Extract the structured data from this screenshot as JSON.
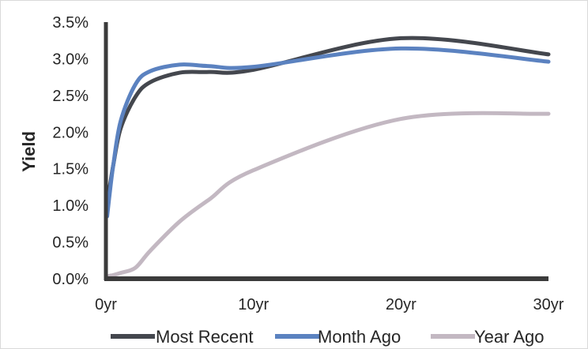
{
  "chart_data": {
    "type": "line",
    "title": "",
    "xlabel": "",
    "ylabel": "Yield",
    "xlim": [
      0,
      30
    ],
    "ylim": [
      0,
      0.035
    ],
    "x_ticks": [
      {
        "value": 0,
        "label": "0yr"
      },
      {
        "value": 10,
        "label": "10yr"
      },
      {
        "value": 20,
        "label": "20yr"
      },
      {
        "value": 30,
        "label": "30yr"
      }
    ],
    "y_ticks": [
      {
        "value": 0.0,
        "label": "0.0%"
      },
      {
        "value": 0.005,
        "label": "0.5%"
      },
      {
        "value": 0.01,
        "label": "1.0%"
      },
      {
        "value": 0.015,
        "label": "1.5%"
      },
      {
        "value": 0.02,
        "label": "2.0%"
      },
      {
        "value": 0.025,
        "label": "2.5%"
      },
      {
        "value": 0.03,
        "label": "3.0%"
      },
      {
        "value": 0.035,
        "label": "3.5%"
      }
    ],
    "grid": false,
    "legend_position": "bottom",
    "series": [
      {
        "name": "Most Recent",
        "color": "#44474e",
        "x": [
          0.083,
          0.25,
          0.5,
          1,
          2,
          3,
          5,
          7,
          10,
          20,
          30
        ],
        "y": [
          0.0118,
          0.0125,
          0.0155,
          0.0205,
          0.0248,
          0.0268,
          0.0281,
          0.0282,
          0.0285,
          0.0328,
          0.0306
        ]
      },
      {
        "name": "Month Ago",
        "color": "#5b82c0",
        "x": [
          0.083,
          0.25,
          0.5,
          1,
          2,
          3,
          5,
          7,
          10,
          20,
          30
        ],
        "y": [
          0.0085,
          0.0115,
          0.0155,
          0.0215,
          0.0265,
          0.0283,
          0.0292,
          0.029,
          0.0289,
          0.0314,
          0.0296
        ]
      },
      {
        "name": "Year Ago",
        "color": "#c3b8c2",
        "x": [
          0.083,
          0.25,
          0.5,
          1,
          2,
          3,
          5,
          7,
          10,
          20,
          30
        ],
        "y": [
          0.0003,
          0.0004,
          0.0005,
          0.0008,
          0.0015,
          0.0038,
          0.0078,
          0.0108,
          0.0148,
          0.0218,
          0.0225
        ]
      }
    ]
  }
}
